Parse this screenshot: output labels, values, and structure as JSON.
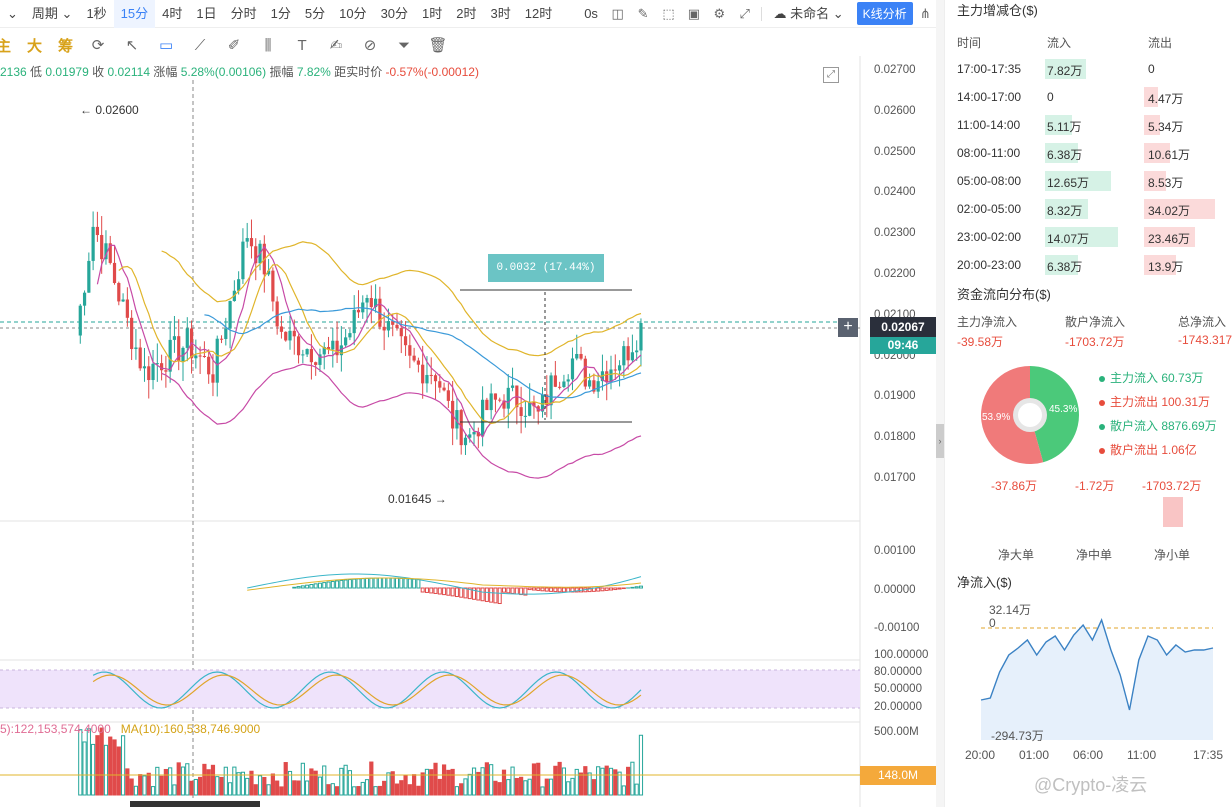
{
  "toolbar": {
    "items": [
      "周期",
      "1秒",
      "15分",
      "4时",
      "1日",
      "分时",
      "1分",
      "5分",
      "10分",
      "30分",
      "1时",
      "2时",
      "3时",
      "12时"
    ],
    "active_index": 2,
    "countdown": "0s",
    "layout_name": "未命名",
    "k_analysis": "K线分析"
  },
  "toolbar2": {
    "labels": [
      "主",
      "大",
      "筹"
    ]
  },
  "info": {
    "high_partial": "2136",
    "low_label": "低",
    "low": "0.01979",
    "close_label": "收",
    "close": "0.02114",
    "change_label": "涨幅",
    "change": "5.28%(0.00106)",
    "amp_label": "振幅",
    "amp": "7.82%",
    "dist_label": "距实时价",
    "dist": "-0.57%(-0.00012)"
  },
  "price_axis": [
    "0.02700",
    "0.02600",
    "0.02500",
    "0.02400",
    "0.02300",
    "0.02200",
    "0.02100",
    "0.02000",
    "0.01900",
    "0.01800",
    "0.01700"
  ],
  "macd_axis": [
    "0.00100",
    "0.00000",
    "-0.00100"
  ],
  "kdj_axis": [
    "100.00000",
    "80.00000",
    "50.00000",
    "20.00000"
  ],
  "vol_axis": [
    "500.00M"
  ],
  "current_price": "0.02067",
  "current_time": "09:46",
  "volume_badge": "148.0M",
  "ruler_text": "0.0032 (17.44%)",
  "high_annotation": "← 0.02600",
  "low_annotation": "0.01645 →",
  "ma_line": {
    "a": "5):122,153,574.4000",
    "b": "MA(10):160,538,746.9000"
  },
  "colors": {
    "up": "#26a69a",
    "down": "#e04a4a",
    "accent": "#3b82f6",
    "ma_yellow": "#e0b52b",
    "ma_pink": "#c74aa6",
    "ma_blue": "#3b9ad9"
  },
  "panel": {
    "flow_title": "主力增减仓($)",
    "headers": [
      "时间",
      "流入",
      "流出"
    ],
    "rows": [
      {
        "time": "17:00-17:35",
        "in": "7.82万",
        "out": "0",
        "in_v": 7.82,
        "out_v": 0
      },
      {
        "time": "14:00-17:00",
        "in": "0",
        "out": "4.47万",
        "in_v": 0,
        "out_v": 4.47
      },
      {
        "time": "11:00-14:00",
        "in": "5.11万",
        "out": "5.34万",
        "in_v": 5.11,
        "out_v": 5.34
      },
      {
        "time": "08:00-11:00",
        "in": "6.38万",
        "out": "10.61万",
        "in_v": 6.38,
        "out_v": 10.61
      },
      {
        "time": "05:00-08:00",
        "in": "12.65万",
        "out": "8.53万",
        "in_v": 12.65,
        "out_v": 8.53
      },
      {
        "time": "02:00-05:00",
        "in": "8.32万",
        "out": "34.02万",
        "in_v": 8.32,
        "out_v": 34.02
      },
      {
        "time": "23:00-02:00",
        "in": "14.07万",
        "out": "23.46万",
        "in_v": 14.07,
        "out_v": 23.46
      },
      {
        "time": "20:00-23:00",
        "in": "6.38万",
        "out": "13.9万",
        "in_v": 6.38,
        "out_v": 13.9
      }
    ],
    "dist_title": "资金流向分布($)",
    "dist_headers": [
      "主力净流入",
      "散户净流入",
      "总净流入"
    ],
    "dist_values": [
      "-39.58万",
      "-1703.72万",
      "-1743.317"
    ],
    "pie": {
      "red_pct": "53.9%",
      "green_pct": "45.3%",
      "red_v": 53.9,
      "green_v": 45.3
    },
    "legend": [
      {
        "text": "主力流入 60.73万",
        "color": "#2ab27b"
      },
      {
        "text": "主力流出 100.31万",
        "color": "#e74c3c"
      },
      {
        "text": "散户流入 8876.69万",
        "color": "#2ab27b"
      },
      {
        "text": "散户流出 1.06亿",
        "color": "#e74c3c"
      }
    ],
    "net_values": [
      "-37.86万",
      "-1.72万",
      "-1703.72万"
    ],
    "net_labels": [
      "净大单",
      "净中单",
      "净小单"
    ],
    "net_title": "净流入($)",
    "net_top": "32.14万",
    "net_zero": "0",
    "net_bottom": "-294.73万",
    "net_times": [
      "20:00",
      "01:00",
      "06:00",
      "11:00",
      "17:35"
    ]
  },
  "watermark": "@Crypto-凌云"
}
